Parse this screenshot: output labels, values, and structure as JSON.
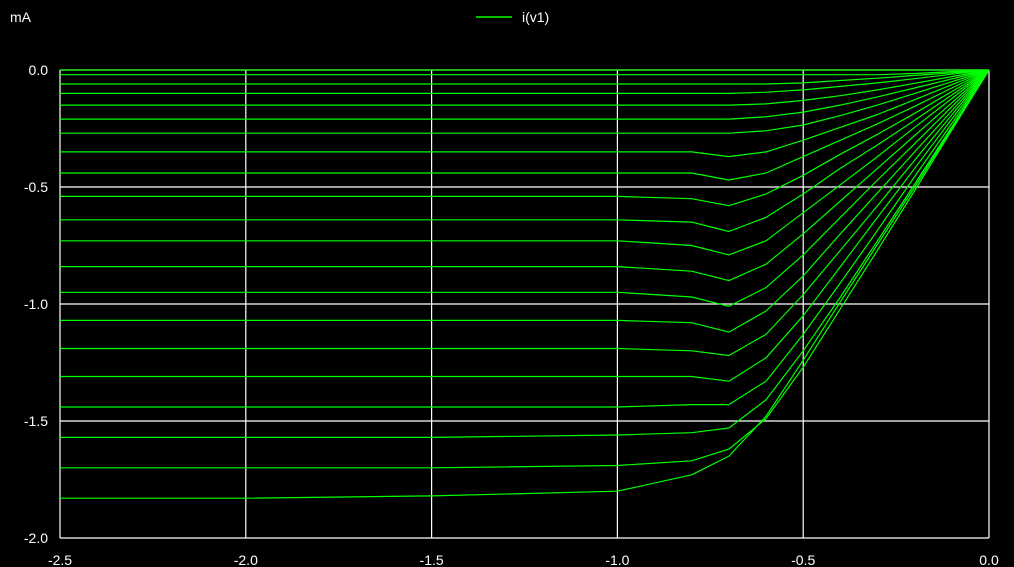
{
  "chart_data": {
    "type": "line",
    "ylabel": "mA",
    "xlim": [
      -2.5,
      0.0
    ],
    "ylim": [
      -2.0,
      0.0
    ],
    "x_ticks": [
      "-2.5",
      "-2.0",
      "-1.5",
      "-1.0",
      "-0.5",
      "0.0"
    ],
    "y_ticks": [
      "0.0",
      "-0.5",
      "-1.0",
      "-1.5",
      "-2.0"
    ],
    "grid": true,
    "legend_position": "top-center",
    "colors": {
      "background": "#000000",
      "grid": "#ffffff",
      "series": "#00ff00",
      "text": "#ffffff"
    },
    "legend": {
      "label": "i(v1)"
    },
    "x": [
      -2.5,
      -2.0,
      -1.5,
      -1.0,
      -0.8,
      -0.7,
      -0.6,
      -0.5,
      -0.4,
      -0.3,
      -0.2,
      -0.1,
      0.0
    ],
    "series": [
      {
        "values": [
          -0.0,
          -0.0,
          -0.0,
          -0.0,
          -0.0,
          -0.0,
          -0.0,
          -0.0,
          -0.0,
          -0.0,
          -0.0,
          -0.0,
          0.0
        ]
      },
      {
        "values": [
          -0.02,
          -0.02,
          -0.02,
          -0.02,
          -0.02,
          -0.02,
          -0.02,
          -0.02,
          -0.02,
          -0.02,
          -0.015,
          -0.007,
          0.0
        ]
      },
      {
        "values": [
          -0.06,
          -0.06,
          -0.06,
          -0.06,
          -0.06,
          -0.06,
          -0.06,
          -0.055,
          -0.045,
          -0.035,
          -0.023,
          -0.012,
          0.0
        ]
      },
      {
        "values": [
          -0.1,
          -0.1,
          -0.1,
          -0.1,
          -0.1,
          -0.1,
          -0.095,
          -0.085,
          -0.07,
          -0.055,
          -0.037,
          -0.018,
          0.0
        ]
      },
      {
        "values": [
          -0.15,
          -0.15,
          -0.15,
          -0.15,
          -0.15,
          -0.15,
          -0.145,
          -0.13,
          -0.11,
          -0.085,
          -0.057,
          -0.028,
          0.0
        ]
      },
      {
        "values": [
          -0.21,
          -0.21,
          -0.21,
          -0.21,
          -0.21,
          -0.21,
          -0.2,
          -0.18,
          -0.15,
          -0.115,
          -0.077,
          -0.038,
          0.0
        ]
      },
      {
        "values": [
          -0.27,
          -0.27,
          -0.27,
          -0.27,
          -0.27,
          -0.27,
          -0.26,
          -0.235,
          -0.195,
          -0.15,
          -0.1,
          -0.05,
          0.0
        ]
      },
      {
        "values": [
          -0.35,
          -0.35,
          -0.35,
          -0.35,
          -0.35,
          -0.37,
          -0.35,
          -0.3,
          -0.245,
          -0.19,
          -0.127,
          -0.063,
          0.0
        ]
      },
      {
        "values": [
          -0.44,
          -0.44,
          -0.44,
          -0.44,
          -0.44,
          -0.47,
          -0.44,
          -0.37,
          -0.3,
          -0.23,
          -0.155,
          -0.077,
          0.0
        ]
      },
      {
        "values": [
          -0.54,
          -0.54,
          -0.54,
          -0.54,
          -0.55,
          -0.58,
          -0.53,
          -0.45,
          -0.36,
          -0.275,
          -0.185,
          -0.092,
          0.0
        ]
      },
      {
        "values": [
          -0.64,
          -0.64,
          -0.64,
          -0.64,
          -0.65,
          -0.69,
          -0.63,
          -0.53,
          -0.42,
          -0.32,
          -0.215,
          -0.107,
          0.0
        ]
      },
      {
        "values": [
          -0.73,
          -0.73,
          -0.73,
          -0.73,
          -0.75,
          -0.79,
          -0.73,
          -0.61,
          -0.49,
          -0.37,
          -0.245,
          -0.122,
          0.0
        ]
      },
      {
        "values": [
          -0.84,
          -0.84,
          -0.84,
          -0.84,
          -0.86,
          -0.9,
          -0.83,
          -0.7,
          -0.56,
          -0.42,
          -0.28,
          -0.14,
          0.0
        ]
      },
      {
        "values": [
          -0.95,
          -0.95,
          -0.95,
          -0.95,
          -0.97,
          -1.01,
          -0.93,
          -0.79,
          -0.63,
          -0.47,
          -0.315,
          -0.157,
          0.0
        ]
      },
      {
        "values": [
          -1.07,
          -1.07,
          -1.07,
          -1.07,
          -1.08,
          -1.12,
          -1.03,
          -0.88,
          -0.7,
          -0.525,
          -0.35,
          -0.175,
          0.0
        ]
      },
      {
        "values": [
          -1.19,
          -1.19,
          -1.19,
          -1.19,
          -1.2,
          -1.22,
          -1.13,
          -0.96,
          -0.77,
          -0.58,
          -0.385,
          -0.192,
          0.0
        ]
      },
      {
        "values": [
          -1.31,
          -1.31,
          -1.31,
          -1.31,
          -1.31,
          -1.33,
          -1.23,
          -1.05,
          -0.84,
          -0.63,
          -0.42,
          -0.21,
          0.0
        ]
      },
      {
        "values": [
          -1.44,
          -1.44,
          -1.44,
          -1.44,
          -1.43,
          -1.43,
          -1.33,
          -1.13,
          -0.91,
          -0.685,
          -0.455,
          -0.228,
          0.0
        ]
      },
      {
        "values": [
          -1.57,
          -1.57,
          -1.57,
          -1.56,
          -1.55,
          -1.53,
          -1.41,
          -1.2,
          -0.97,
          -0.73,
          -0.487,
          -0.243,
          0.0
        ]
      },
      {
        "values": [
          -1.7,
          -1.7,
          -1.7,
          -1.69,
          -1.67,
          -1.62,
          -1.49,
          -1.27,
          -1.02,
          -0.77,
          -0.515,
          -0.257,
          0.0
        ]
      },
      {
        "values": [
          -1.83,
          -1.83,
          -1.82,
          -1.8,
          -1.73,
          -1.65,
          -1.48,
          -1.24,
          -0.99,
          -0.745,
          -0.5,
          -0.25,
          0.0
        ]
      }
    ]
  }
}
